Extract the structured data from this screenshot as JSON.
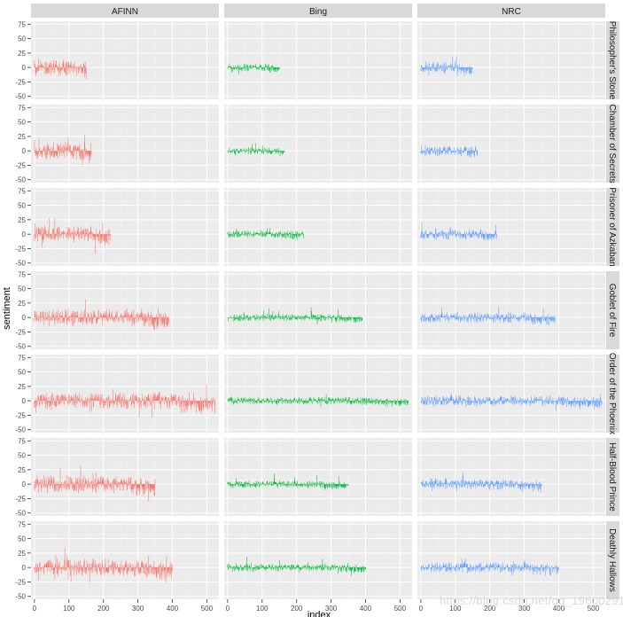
{
  "chart_data": {
    "type": "bar",
    "facet_columns": [
      "AFINN",
      "Bing",
      "NRC"
    ],
    "facet_rows": [
      "Philosopher's Stone",
      "Chamber of Secrets",
      "Prisoner of Azkaban",
      "Goblet of Fire",
      "Order of the Phoenix",
      "Half-Blood Prince",
      "Deathly Hallows"
    ],
    "xlabel": "index",
    "ylabel": "sentiment",
    "xlim": [
      -10,
      535
    ],
    "ylim": [
      -55,
      80
    ],
    "x_ticks": [
      0,
      100,
      200,
      300,
      400,
      500
    ],
    "x_tick_labels": [
      "0",
      "100",
      "200",
      "300",
      "400",
      "500"
    ],
    "y_ticks": [
      -50,
      -25,
      0,
      25,
      50,
      75
    ],
    "y_tick_labels": [
      "-50",
      "-25",
      "0",
      "25",
      "50",
      "75"
    ],
    "book_lengths": [
      150,
      165,
      220,
      390,
      525,
      350,
      400
    ],
    "series": [
      {
        "name": "AFINN",
        "color": "#F8766D",
        "amplitude": 22
      },
      {
        "name": "Bing",
        "color": "#00BA38",
        "amplitude": 10
      },
      {
        "name": "NRC",
        "color": "#619CFF",
        "amplitude": 14
      }
    ],
    "grid": true,
    "legend": "none"
  },
  "watermark": "https://blog.csdn.net/qq_19600291"
}
